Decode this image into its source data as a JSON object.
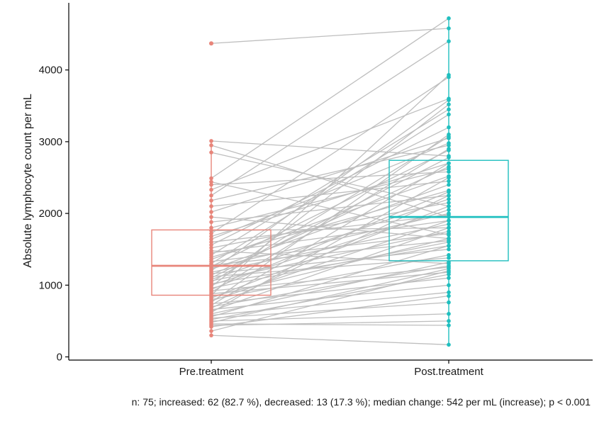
{
  "chart_data": {
    "type": "paired-boxplot",
    "title": "",
    "xlabel": "",
    "ylabel": "Absolute lymphocyte count per mL",
    "ylim": [
      0,
      4800
    ],
    "yticks": [
      0,
      1000,
      2000,
      3000,
      4000
    ],
    "categories": [
      "Pre.treatment",
      "Post.treatment"
    ],
    "colors": {
      "pre": "#E8857A",
      "post": "#1FBFBF",
      "line": "#BEBEBE",
      "axis": "#000000"
    },
    "boxes": [
      {
        "group": "Pre.treatment",
        "q1": 860,
        "median": 1270,
        "q3": 1770,
        "whisker_low": 300,
        "whisker_high": 3010,
        "outliers": [
          4370
        ]
      },
      {
        "group": "Post.treatment",
        "q1": 1340,
        "median": 1950,
        "q3": 2740,
        "whisker_low": 170,
        "whisker_high": 4720,
        "outliers": []
      }
    ],
    "pairs": [
      [
        4370,
        4580
      ],
      [
        3010,
        2800
      ],
      [
        2950,
        1950
      ],
      [
        2850,
        2100
      ],
      [
        2490,
        4720
      ],
      [
        2440,
        1700
      ],
      [
        2400,
        2580
      ],
      [
        2330,
        3600
      ],
      [
        2250,
        4400
      ],
      [
        2180,
        2950
      ],
      [
        2100,
        2450
      ],
      [
        2020,
        3050
      ],
      [
        1950,
        1650
      ],
      [
        1880,
        2250
      ],
      [
        1800,
        2620
      ],
      [
        1760,
        1800
      ],
      [
        1720,
        3900
      ],
      [
        1680,
        2700
      ],
      [
        1640,
        2980
      ],
      [
        1600,
        1980
      ],
      [
        1560,
        3200
      ],
      [
        1520,
        2150
      ],
      [
        1480,
        1300
      ],
      [
        1450,
        1900
      ],
      [
        1420,
        3450
      ],
      [
        1390,
        2320
      ],
      [
        1360,
        2520
      ],
      [
        1330,
        1720
      ],
      [
        1300,
        3380
      ],
      [
        1280,
        1620
      ],
      [
        1260,
        2880
      ],
      [
        1240,
        2000
      ],
      [
        1220,
        2400
      ],
      [
        1200,
        3580
      ],
      [
        1180,
        1850
      ],
      [
        1160,
        1500
      ],
      [
        1140,
        2650
      ],
      [
        1120,
        1380
      ],
      [
        1100,
        2780
      ],
      [
        1080,
        2200
      ],
      [
        1060,
        1750
      ],
      [
        1040,
        3070
      ],
      [
        1020,
        1550
      ],
      [
        1000,
        2050
      ],
      [
        980,
        3520
      ],
      [
        960,
        1600
      ],
      [
        940,
        2300
      ],
      [
        920,
        1250
      ],
      [
        900,
        2900
      ],
      [
        880,
        1180
      ],
      [
        860,
        3930
      ],
      [
        840,
        1650
      ],
      [
        820,
        2100
      ],
      [
        800,
        1420
      ],
      [
        780,
        1900
      ],
      [
        760,
        3100
      ],
      [
        740,
        1100
      ],
      [
        720,
        2700
      ],
      [
        700,
        1270
      ],
      [
        680,
        2250
      ],
      [
        660,
        1000
      ],
      [
        640,
        1800
      ],
      [
        620,
        2500
      ],
      [
        600,
        1320
      ],
      [
        580,
        900
      ],
      [
        560,
        1550
      ],
      [
        540,
        760
      ],
      [
        520,
        1150
      ],
      [
        500,
        600
      ],
      [
        480,
        1230
      ],
      [
        460,
        440
      ],
      [
        440,
        500
      ],
      [
        420,
        850
      ],
      [
        360,
        1200
      ],
      [
        300,
        170
      ]
    ],
    "caption": "n: 75; increased: 62 (82.7 %), decreased: 13 (17.3 %); median change: 542 per mL (increase); p < 0.001"
  }
}
